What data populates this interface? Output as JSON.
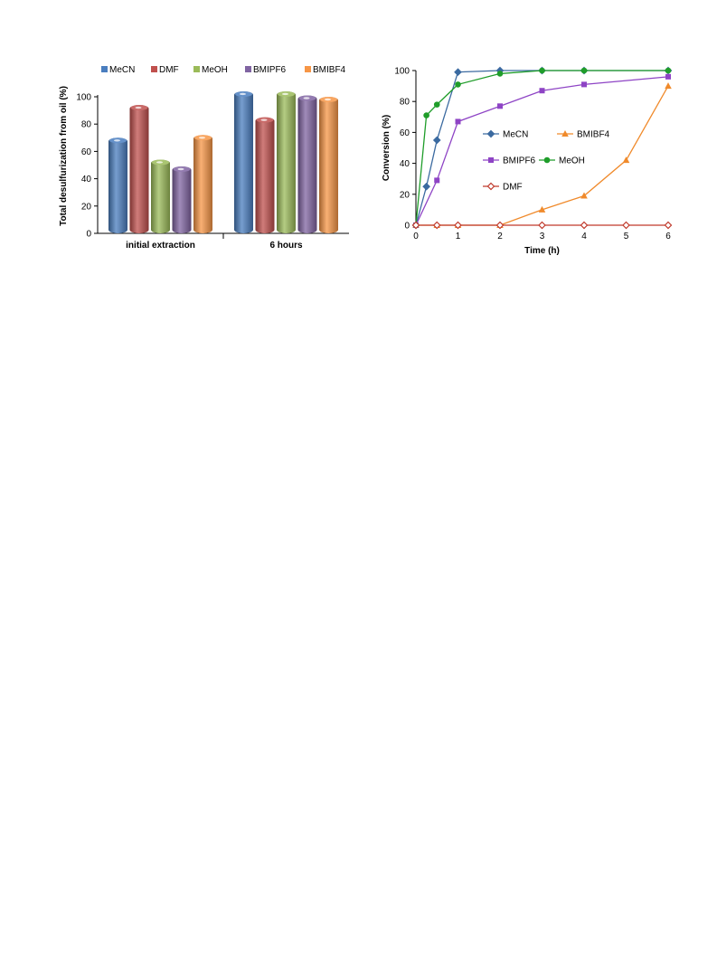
{
  "chart_data": [
    {
      "type": "bar",
      "categories": [
        "initial extraction",
        "6 hours"
      ],
      "series": [
        {
          "name": "MeCN",
          "values": [
            70,
            104
          ],
          "color": "#4a7ebf"
        },
        {
          "name": "DMF",
          "values": [
            94,
            85
          ],
          "color": "#c0504d"
        },
        {
          "name": "MeOH",
          "values": [
            54,
            104
          ],
          "color": "#9bbb59"
        },
        {
          "name": "BMIPF6",
          "values": [
            49,
            101
          ],
          "color": "#8064a2"
        },
        {
          "name": "BMIBF4",
          "values": [
            72,
            100
          ],
          "color": "#f79646"
        }
      ],
      "title": "",
      "xlabel": "",
      "ylabel": "Total desulfurization from oil (%)",
      "ylim": [
        0,
        100
      ],
      "yticks": [
        "0",
        "20",
        "40",
        "60",
        "80",
        "100"
      ],
      "legend": "top"
    },
    {
      "type": "line",
      "xlabel": "Time (h)",
      "ylabel": "Conversion (%)",
      "xlim": [
        0,
        6
      ],
      "ylim": [
        0,
        100
      ],
      "xticks": [
        "0",
        "1",
        "2",
        "3",
        "4",
        "5",
        "6"
      ],
      "yticks": [
        "0",
        "20",
        "40",
        "60",
        "80",
        "100"
      ],
      "legend": "inside-left",
      "series": [
        {
          "name": "MeCN",
          "marker": "diamond",
          "color": "#3b6aa0",
          "x": [
            0,
            0.25,
            0.5,
            1,
            2,
            3,
            4,
            6
          ],
          "y": [
            0,
            25,
            55,
            99,
            100,
            100,
            100,
            100
          ]
        },
        {
          "name": "BMIBF4",
          "marker": "triangle",
          "color": "#f08a2b",
          "x": [
            0,
            0.5,
            1,
            2,
            3,
            4,
            5,
            6
          ],
          "y": [
            0,
            0,
            0,
            0,
            10,
            19,
            42,
            90
          ]
        },
        {
          "name": "BMIPF6",
          "marker": "square",
          "color": "#8e44c5",
          "x": [
            0,
            0.5,
            1,
            2,
            3,
            4,
            6
          ],
          "y": [
            0,
            29,
            67,
            77,
            87,
            91,
            96
          ]
        },
        {
          "name": "MeOH",
          "marker": "circle",
          "color": "#1f9d2a",
          "x": [
            0,
            0.25,
            0.5,
            1,
            2,
            3,
            4,
            6
          ],
          "y": [
            0,
            71,
            78,
            91,
            98,
            100,
            100,
            100
          ]
        },
        {
          "name": "DMF",
          "marker": "open-diamond",
          "color": "#c0392b",
          "x": [
            0,
            0.5,
            1,
            2,
            3,
            4,
            5,
            6
          ],
          "y": [
            0,
            0,
            0,
            0,
            0,
            0,
            0,
            0
          ]
        }
      ]
    }
  ]
}
